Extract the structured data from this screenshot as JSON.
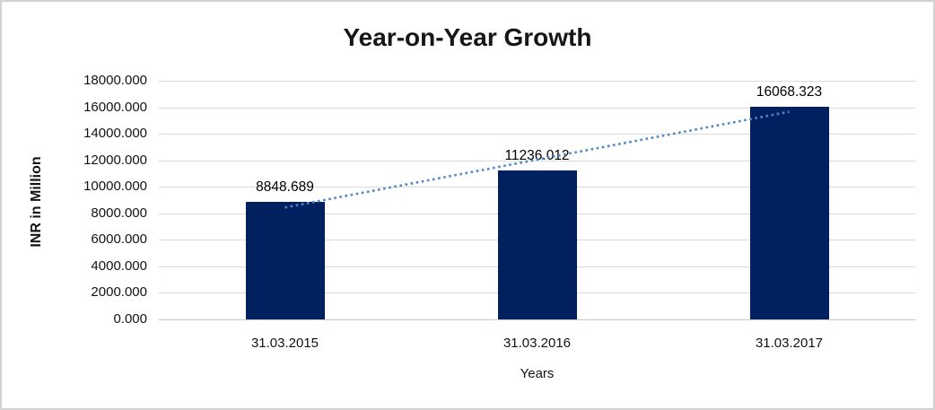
{
  "window": {
    "background": "#ffffff",
    "border_color": "#d2d2d2"
  },
  "chart_data": {
    "type": "bar",
    "title": "Year-on-Year Growth",
    "xlabel": "Years",
    "ylabel": "INR in Million",
    "categories": [
      "31.03.2015",
      "31.03.2016",
      "31.03.2017"
    ],
    "values": [
      8848.689,
      11236.012,
      16068.323
    ],
    "data_labels": [
      "8848.689",
      "11236.012",
      "16068.323"
    ],
    "ylim": [
      0,
      18000
    ],
    "ytick_step": 2000,
    "ytick_labels_top_to_bottom": [
      "18000.000",
      "16000.000",
      "14000.000",
      "12000.000",
      "10000.000",
      "8000.000",
      "6000.000",
      "4000.000",
      "2000.000",
      "0.000"
    ],
    "grid": "horizontal",
    "legend": "none",
    "bar_color": "#002060",
    "gridline_color": "#d9d9d9",
    "trendline": {
      "type": "linear",
      "style": "dotted",
      "color": "#4f87c7",
      "y_at_first_category": 8440,
      "y_at_last_category": 15660
    }
  }
}
